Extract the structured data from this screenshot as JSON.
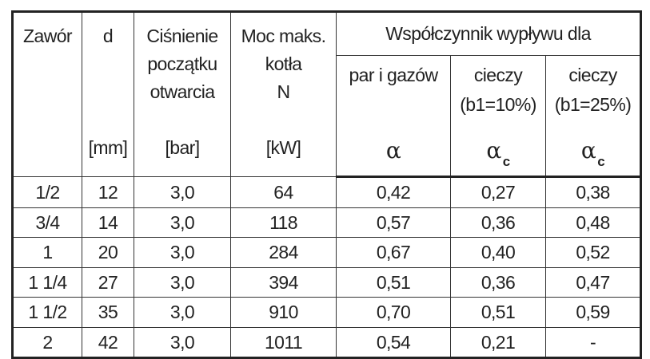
{
  "header": {
    "zawor": "Zawór",
    "d": "d",
    "cisnienie": [
      "Ciśnienie",
      "początku",
      "otwarcia"
    ],
    "moc": [
      "Moc maks.",
      "kotła",
      "N"
    ],
    "units": {
      "d": "[mm]",
      "cisnienie": "[bar]",
      "moc": "[kW]"
    },
    "wspolczynnik": "Współczynnik wypływu dla",
    "par": {
      "label": "par i gazów",
      "symbol": "α"
    },
    "ciecz10": {
      "label": [
        "cieczy",
        "(b1=10%)"
      ],
      "symbol": "α",
      "subscript": "c"
    },
    "ciecz25": {
      "label": [
        "cieczy",
        "(b1=25%)"
      ],
      "symbol": "α",
      "subscript": "c"
    }
  },
  "rows": [
    [
      "1/2",
      "12",
      "3,0",
      "64",
      "0,42",
      "0,27",
      "0,38"
    ],
    [
      "3/4",
      "14",
      "3,0",
      "118",
      "0,57",
      "0,36",
      "0,48"
    ],
    [
      "1",
      "20",
      "3,0",
      "284",
      "0,67",
      "0,40",
      "0,52"
    ],
    [
      "1 1/4",
      "27",
      "3,0",
      "394",
      "0,51",
      "0,36",
      "0,47"
    ],
    [
      "1 1/2",
      "35",
      "3,0",
      "910",
      "0,70",
      "0,51",
      "0,59"
    ],
    [
      "2",
      "42",
      "3,0",
      "1011",
      "0,54",
      "0,21",
      "-"
    ]
  ]
}
